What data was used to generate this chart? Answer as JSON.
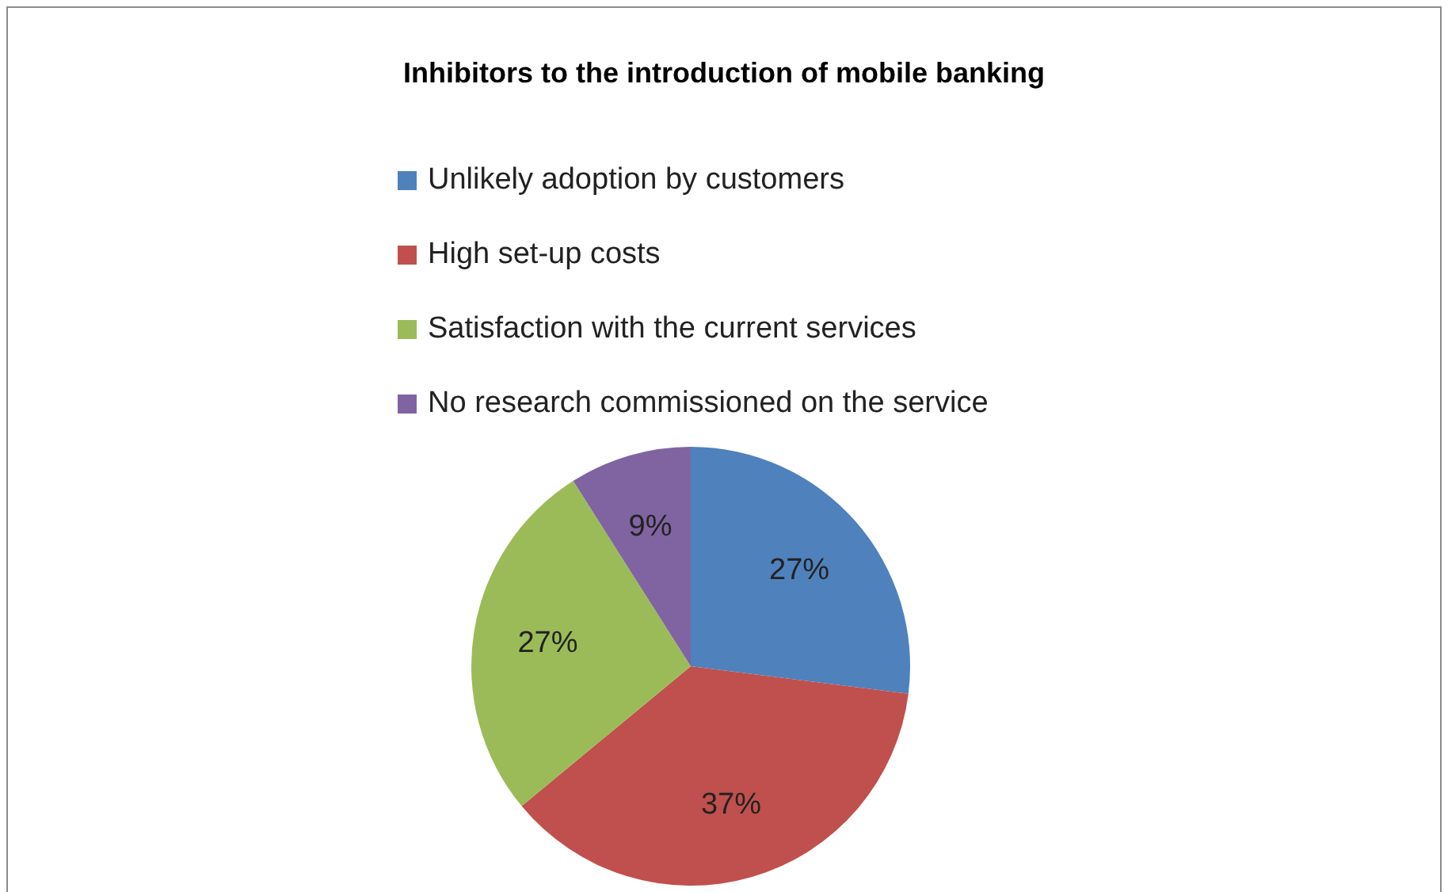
{
  "chart_data": {
    "type": "pie",
    "title": "Inhibitors to the introduction of mobile banking",
    "categories": [
      "Unlikely adoption by customers",
      "High set-up costs",
      "Satisfaction with the current services",
      "No research commissioned on the service"
    ],
    "values": [
      27,
      37,
      27,
      9
    ],
    "colors": [
      "#4f81bd",
      "#c0504d",
      "#9bbb59",
      "#8064a2"
    ],
    "value_labels": [
      "27%",
      "37%",
      "27%",
      "9%"
    ],
    "legend": "top"
  }
}
